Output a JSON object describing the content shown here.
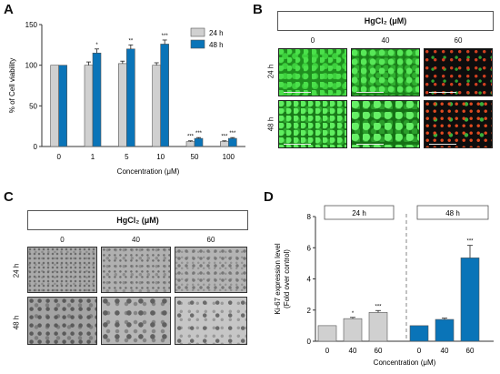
{
  "panels": {
    "a": {
      "letter": "A"
    },
    "b": {
      "letter": "B",
      "header": "HgCl₂ (μM)",
      "cols": [
        "0",
        "40",
        "60"
      ],
      "rows": [
        "24 h",
        "48 h"
      ]
    },
    "c": {
      "letter": "C",
      "header": "HgCl₂ (μM)",
      "cols": [
        "0",
        "40",
        "60"
      ],
      "rows": [
        "24 h",
        "48 h"
      ]
    },
    "d": {
      "letter": "D"
    }
  },
  "chart_data": [
    {
      "type": "bar",
      "panel": "A",
      "categories": [
        "0",
        "1",
        "5",
        "10",
        "50",
        "100"
      ],
      "xlabel": "Concentration (μM)",
      "ylabel": "% of Cell viability",
      "ylim": [
        0,
        150
      ],
      "yticks": [
        0,
        50,
        100,
        150
      ],
      "legend_position": "top-right",
      "series": [
        {
          "name": "24 h",
          "color": "#d0d0d0",
          "values": [
            100,
            100,
            102,
            100,
            6,
            6
          ],
          "errors": [
            0,
            4,
            3,
            3,
            1,
            1
          ],
          "significance": [
            "",
            "",
            "",
            "",
            "***",
            "***"
          ]
        },
        {
          "name": "48 h",
          "color": "#0a74b8",
          "values": [
            100,
            115,
            120,
            126,
            10,
            10
          ],
          "errors": [
            0,
            5,
            5,
            5,
            1,
            1
          ],
          "significance": [
            "",
            "*",
            "**",
            "***",
            "***",
            "***"
          ]
        }
      ]
    },
    {
      "type": "bar",
      "panel": "D",
      "groups": [
        "24 h",
        "48 h"
      ],
      "categories": [
        "0",
        "40",
        "60",
        "0",
        "40",
        "60"
      ],
      "xlabel": "Concentration (μM)",
      "ylabel": "Ki-67 expression level",
      "ylabel2": "(Fold over control)",
      "ylim": [
        0,
        8
      ],
      "yticks": [
        0,
        2,
        4,
        6,
        8
      ],
      "colors": [
        "#d0d0d0",
        "#d0d0d0",
        "#d0d0d0",
        "#0a74b8",
        "#0a74b8",
        "#0a74b8"
      ],
      "values": [
        1.0,
        1.45,
        1.85,
        1.0,
        1.4,
        5.35
      ],
      "errors": [
        0,
        0.08,
        0.12,
        0,
        0.08,
        0.8
      ],
      "significance": [
        "",
        "*",
        "***",
        "",
        "",
        "***"
      ]
    }
  ]
}
